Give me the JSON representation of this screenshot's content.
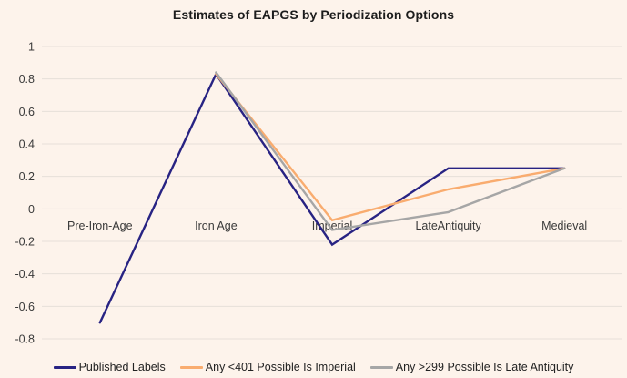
{
  "title": "Estimates of EAPGS by Periodization Options",
  "chart_data": {
    "type": "line",
    "title": "Estimates of EAPGS by Periodization Options",
    "categories": [
      "Pre-Iron-Age",
      "Iron Age",
      "Imperial",
      "LateAntiquity",
      "Medieval"
    ],
    "series": [
      {
        "name": "Published Labels",
        "color": "#282383",
        "values": [
          -0.7,
          0.83,
          -0.22,
          0.25,
          0.25
        ]
      },
      {
        "name": "Any <401 Possible Is Imperial",
        "color": "#F9AC6F",
        "values": [
          null,
          0.83,
          -0.07,
          0.12,
          0.25
        ]
      },
      {
        "name": "Any >299 Possible Is Late Antiquity",
        "color": "#A6A6A6",
        "values": [
          null,
          0.84,
          -0.13,
          -0.02,
          0.25
        ]
      }
    ],
    "ylim": [
      -0.8,
      1
    ],
    "ytick_step": 0.2,
    "ytick_labels": [
      "1",
      "0.8",
      "0.6",
      "0.4",
      "0.2",
      "0",
      "-0.2",
      "-0.4",
      "-0.6",
      "-0.8"
    ],
    "grid": true,
    "legend_position": "bottom",
    "colors": {
      "background": "#FDF3EB",
      "gridline": "#E6DFD9",
      "axis_text": "#3A3A3A",
      "title_text": "#1C1C1C"
    }
  }
}
